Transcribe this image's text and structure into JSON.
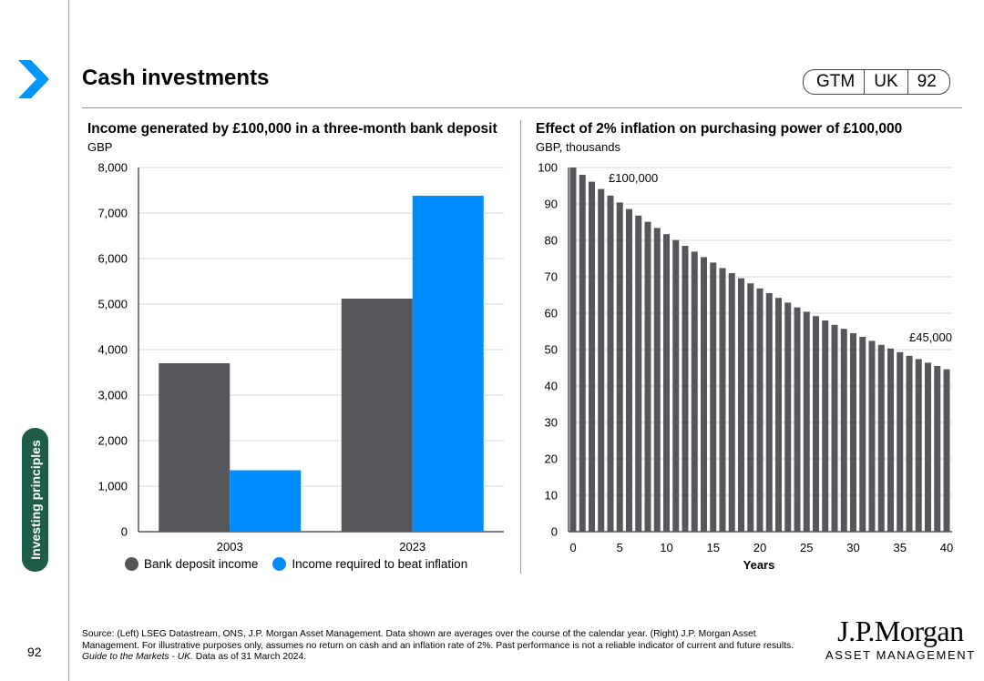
{
  "header": {
    "title": "Cash investments",
    "badge": [
      "GTM",
      "UK",
      "92"
    ]
  },
  "sidebar": {
    "section_label": "Investing principles",
    "page_number": "92"
  },
  "colors": {
    "dark_bar": "#55575b",
    "blue_bar": "#008cff",
    "grid": "#d9d9d9",
    "sidetab": "#1f5c4a",
    "chevron": "#0096ff"
  },
  "chart_data": [
    {
      "type": "bar",
      "title": "Income generated by £100,000 in a three-month bank deposit",
      "ylabel": "GBP",
      "xlabel": "",
      "categories": [
        "2003",
        "2023"
      ],
      "series": [
        {
          "name": "Bank deposit income",
          "values": [
            3700,
            5120
          ]
        },
        {
          "name": "Income required to beat inflation",
          "values": [
            1350,
            7380
          ]
        }
      ],
      "ylim": [
        0,
        8000
      ],
      "yticks": [
        "0",
        "1,000",
        "2,000",
        "3,000",
        "4,000",
        "5,000",
        "6,000",
        "7,000",
        "8,000"
      ],
      "grid": true,
      "legend": "bottom"
    },
    {
      "type": "bar",
      "title": "Effect of 2% inflation on purchasing power of £100,000",
      "ylabel": "GBP, thousands",
      "xlabel": "Years",
      "x": [
        0,
        1,
        2,
        3,
        4,
        5,
        6,
        7,
        8,
        9,
        10,
        11,
        12,
        13,
        14,
        15,
        16,
        17,
        18,
        19,
        20,
        21,
        22,
        23,
        24,
        25,
        26,
        27,
        28,
        29,
        30,
        31,
        32,
        33,
        34,
        35,
        36,
        37,
        38,
        39,
        40
      ],
      "values": [
        100,
        98.0,
        96.1,
        94.1,
        92.3,
        90.4,
        88.6,
        86.8,
        85.1,
        83.4,
        81.7,
        80.1,
        78.5,
        76.9,
        75.4,
        73.9,
        72.4,
        71.0,
        69.6,
        68.2,
        66.8,
        65.5,
        64.2,
        62.9,
        61.6,
        60.4,
        59.2,
        58.0,
        56.8,
        55.7,
        54.5,
        53.5,
        52.4,
        51.3,
        50.3,
        49.3,
        48.3,
        47.4,
        46.4,
        45.5,
        44.6
      ],
      "ylim": [
        0,
        100
      ],
      "yticks": [
        "0",
        "10",
        "20",
        "30",
        "40",
        "50",
        "60",
        "70",
        "80",
        "90",
        "100"
      ],
      "xticks": [
        "0",
        "5",
        "10",
        "15",
        "20",
        "25",
        "30",
        "35",
        "40"
      ],
      "annotations": [
        "£100,000",
        "£45,000"
      ],
      "grid": true
    }
  ],
  "footnote": {
    "part1": "Source: (Left) LSEG Datastream, ONS, J.P. Morgan Asset Management. Data shown are averages over the course of the calendar year. (Right) J.P. Morgan Asset Management. For illustrative purposes only, assumes no return on cash and an inflation rate of 2%. Past performance is not a reliable indicator of current and future results. ",
    "italic": "Guide to the Markets - UK.",
    "part2": " Data as of 31 March 2024."
  },
  "logo": {
    "line1": "J.P.Morgan",
    "line2": "ASSET MANAGEMENT"
  }
}
